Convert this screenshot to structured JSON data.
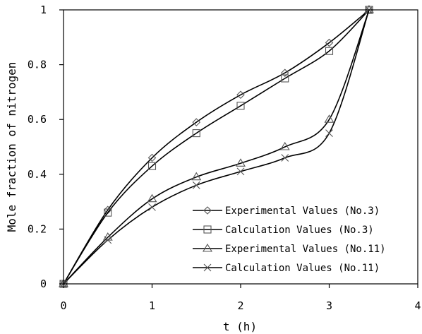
{
  "chart_data": {
    "type": "line",
    "title": "",
    "xlabel": "t (h)",
    "ylabel": "Mole fraction of nitrogen",
    "xlim": [
      0,
      4
    ],
    "ylim": [
      0,
      1
    ],
    "x_ticks": [
      0,
      1,
      2,
      3,
      4
    ],
    "y_ticks": [
      0,
      0.2,
      0.4,
      0.6,
      0.8,
      1
    ],
    "y_tick_labels": [
      "0",
      "0.2",
      "0.4",
      "0.6",
      "0.8",
      "1"
    ],
    "grid": false,
    "legend_position": "bottom-right",
    "x": [
      0,
      0.5,
      1,
      1.5,
      2,
      2.5,
      3,
      3.45
    ],
    "series": [
      {
        "name": "Experimental Values (No.3)",
        "marker": "diamond",
        "values": [
          0,
          0.27,
          0.46,
          0.59,
          0.69,
          0.77,
          0.88,
          1.0
        ]
      },
      {
        "name": "Calculation Values (No.3)",
        "marker": "square",
        "values": [
          0,
          0.26,
          0.43,
          0.55,
          0.65,
          0.75,
          0.85,
          1.0
        ]
      },
      {
        "name": "Experimental Values (No.11)",
        "marker": "triangle",
        "values": [
          0,
          0.17,
          0.31,
          0.39,
          0.44,
          0.5,
          0.6,
          1.0
        ]
      },
      {
        "name": "Calculation Values (No.11)",
        "marker": "cross",
        "values": [
          0,
          0.16,
          0.28,
          0.36,
          0.41,
          0.46,
          0.55,
          1.0
        ]
      }
    ],
    "colors": {
      "line": "#000000",
      "marker": "#555555"
    }
  }
}
